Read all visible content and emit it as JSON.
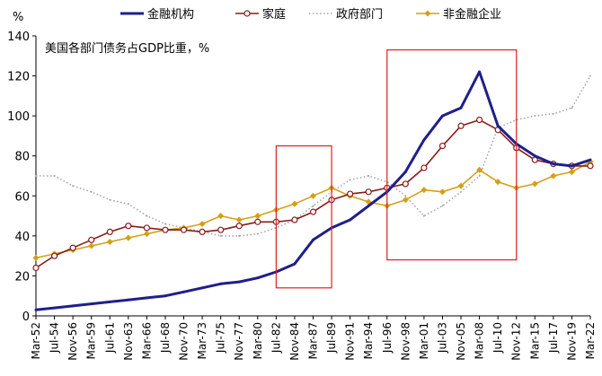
{
  "chart_data": {
    "type": "line",
    "title": "美国各部门债务占GDP比重，%",
    "ylabel": "%",
    "xlabel": "",
    "ylim": [
      0,
      140
    ],
    "yticks": [
      0,
      20,
      40,
      60,
      80,
      100,
      120,
      140
    ],
    "grid": false,
    "legend_position": "top",
    "categories": [
      "Mar-52",
      "Jul-54",
      "Nov-56",
      "Mar-59",
      "Jul-61",
      "Nov-63",
      "Mar-66",
      "Jul-68",
      "Nov-70",
      "Mar-73",
      "Jul-75",
      "Nov-77",
      "Mar-80",
      "Jul-82",
      "Nov-84",
      "Mar-87",
      "Jul-89",
      "Nov-91",
      "Mar-94",
      "Jul-96",
      "Nov-98",
      "Mar-01",
      "Jul-03",
      "Nov-05",
      "Mar-08",
      "Jul-10",
      "Nov-12",
      "Mar-15",
      "Jul-17",
      "Nov-19",
      "Mar-22"
    ],
    "series": [
      {
        "name": "金融机构",
        "color": "#1f1f8c",
        "style": "solid",
        "values": [
          3,
          4,
          5,
          6,
          7,
          8,
          9,
          10,
          12,
          14,
          16,
          17,
          19,
          22,
          26,
          38,
          44,
          48,
          55,
          62,
          72,
          88,
          100,
          104,
          122,
          95,
          86,
          80,
          76,
          75,
          78
        ]
      },
      {
        "name": "家庭",
        "color": "#8b1a1a",
        "style": "circle-marker",
        "values": [
          24,
          30,
          34,
          38,
          42,
          45,
          44,
          43,
          43,
          42,
          43,
          45,
          47,
          47,
          48,
          52,
          58,
          61,
          62,
          64,
          66,
          74,
          85,
          95,
          98,
          93,
          84,
          78,
          76,
          75,
          75
        ]
      },
      {
        "name": "政府部门",
        "color": "#a6a6a6",
        "style": "dotted",
        "values": [
          70,
          70,
          65,
          62,
          58,
          56,
          50,
          46,
          44,
          42,
          40,
          40,
          41,
          44,
          48,
          55,
          62,
          68,
          70,
          67,
          60,
          50,
          55,
          62,
          70,
          94,
          98,
          100,
          101,
          104,
          120
        ]
      },
      {
        "name": "非金融企业",
        "color": "#d4a017",
        "style": "diamond-marker",
        "values": [
          29,
          31,
          33,
          35,
          37,
          39,
          41,
          43,
          44,
          46,
          50,
          48,
          50,
          53,
          56,
          60,
          64,
          60,
          57,
          55,
          58,
          63,
          62,
          65,
          73,
          67,
          64,
          66,
          70,
          72,
          77
        ]
      }
    ],
    "highlight_boxes": [
      {
        "x_start": "Jul-82",
        "x_end": "Jul-89",
        "y_low": 14,
        "y_high": 85
      },
      {
        "x_start": "Jul-96",
        "x_end": "Nov-12",
        "y_low": 28,
        "y_high": 133
      }
    ]
  }
}
